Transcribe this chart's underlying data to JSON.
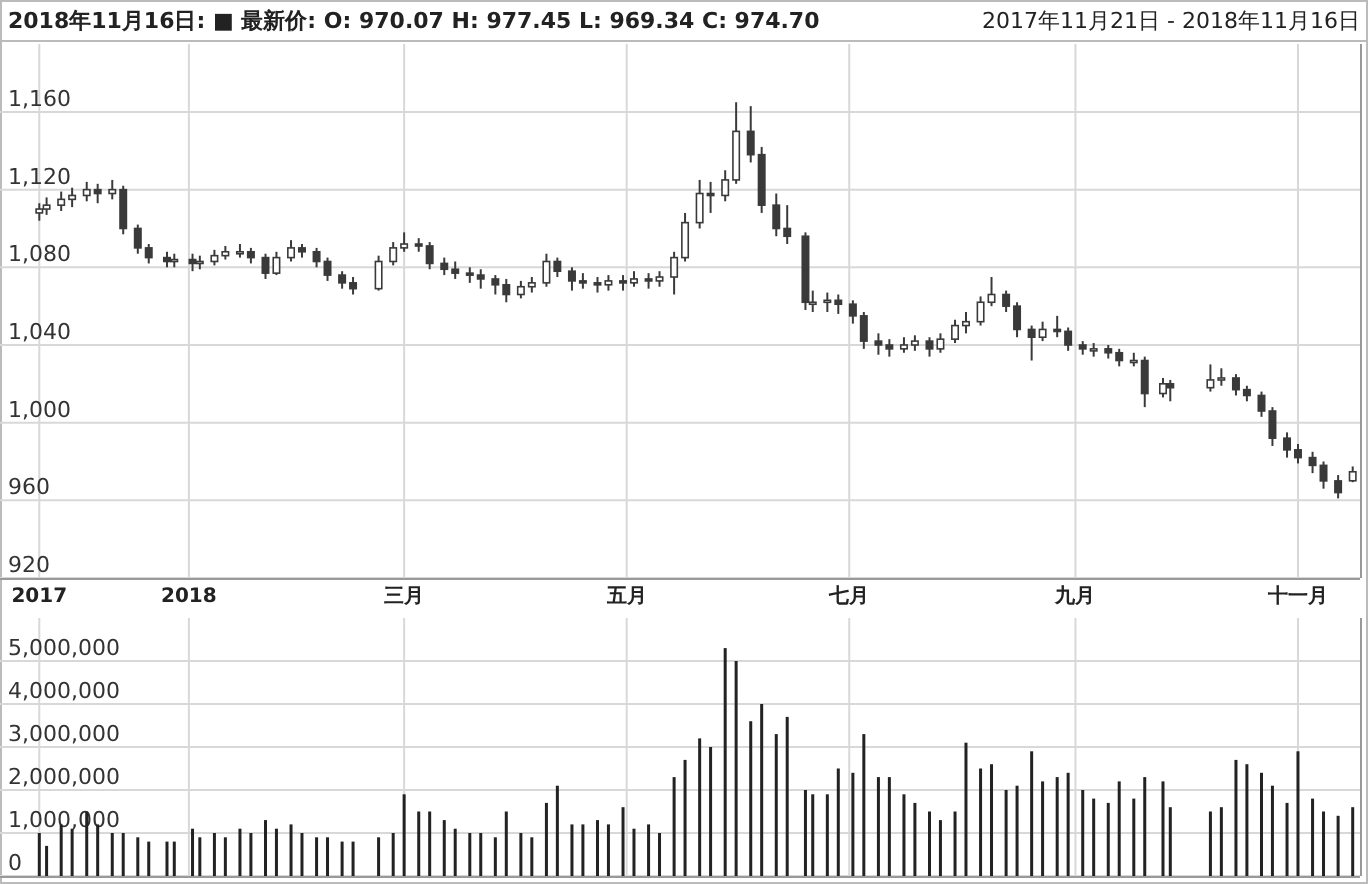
{
  "chart_data": [
    {
      "type": "candlestick",
      "title": "2018年11月16日:  ■ 最新价:  O: 970.07  H: 977.45  L: 969.34  C: 974.70",
      "subtitle": "2017年11月21日 - 2018年11月16日",
      "color": "#3a3a3a",
      "x": [
        "2017-11-21",
        "2017-11-23",
        "2017-11-27",
        "2017-11-30",
        "2017-12-04",
        "2017-12-07",
        "2017-12-11",
        "2017-12-14",
        "2017-12-18",
        "2017-12-21",
        "2017-12-26",
        "2017-12-28",
        "2018-01-02",
        "2018-01-04",
        "2018-01-08",
        "2018-01-11",
        "2018-01-15",
        "2018-01-18",
        "2018-01-22",
        "2018-01-25",
        "2018-01-29",
        "2018-02-01",
        "2018-02-05",
        "2018-02-08",
        "2018-02-12",
        "2018-02-15",
        "2018-02-22",
        "2018-02-26",
        "2018-03-01",
        "2018-03-05",
        "2018-03-08",
        "2018-03-12",
        "2018-03-15",
        "2018-03-19",
        "2018-03-22",
        "2018-03-26",
        "2018-03-29",
        "2018-04-02",
        "2018-04-05",
        "2018-04-09",
        "2018-04-12",
        "2018-04-16",
        "2018-04-19",
        "2018-04-23",
        "2018-04-26",
        "2018-04-30",
        "2018-05-03",
        "2018-05-07",
        "2018-05-10",
        "2018-05-14",
        "2018-05-17",
        "2018-05-21",
        "2018-05-24",
        "2018-05-28",
        "2018-05-31",
        "2018-06-04",
        "2018-06-07",
        "2018-06-11",
        "2018-06-14",
        "2018-06-19",
        "2018-06-21",
        "2018-06-25",
        "2018-06-28",
        "2018-07-02",
        "2018-07-05",
        "2018-07-09",
        "2018-07-12",
        "2018-07-16",
        "2018-07-19",
        "2018-07-23",
        "2018-07-26",
        "2018-07-30",
        "2018-08-02",
        "2018-08-06",
        "2018-08-09",
        "2018-08-13",
        "2018-08-16",
        "2018-08-20",
        "2018-08-23",
        "2018-08-27",
        "2018-08-30",
        "2018-09-03",
        "2018-09-06",
        "2018-09-10",
        "2018-09-13",
        "2018-09-17",
        "2018-09-20",
        "2018-09-25",
        "2018-09-27",
        "2018-10-08",
        "2018-10-11",
        "2018-10-15",
        "2018-10-18",
        "2018-10-22",
        "2018-10-25",
        "2018-10-29",
        "2018-11-01",
        "2018-11-05",
        "2018-11-08",
        "2018-11-12",
        "2018-11-16"
      ],
      "ohlc": [
        [
          1108,
          1113,
          1104,
          1110
        ],
        [
          1110,
          1116,
          1107,
          1112
        ],
        [
          1112,
          1119,
          1109,
          1115
        ],
        [
          1115,
          1121,
          1111,
          1117
        ],
        [
          1117,
          1124,
          1114,
          1120
        ],
        [
          1120,
          1123,
          1113,
          1118
        ],
        [
          1118,
          1125,
          1115,
          1120
        ],
        [
          1120,
          1122,
          1097,
          1100
        ],
        [
          1100,
          1102,
          1087,
          1090
        ],
        [
          1090,
          1092,
          1082,
          1085
        ],
        [
          1085,
          1088,
          1080,
          1083
        ],
        [
          1083,
          1087,
          1080,
          1084
        ],
        [
          1084,
          1087,
          1078,
          1082
        ],
        [
          1082,
          1086,
          1079,
          1083
        ],
        [
          1083,
          1089,
          1081,
          1086
        ],
        [
          1086,
          1091,
          1084,
          1088
        ],
        [
          1088,
          1092,
          1085,
          1088
        ],
        [
          1088,
          1090,
          1082,
          1085
        ],
        [
          1085,
          1087,
          1074,
          1077
        ],
        [
          1077,
          1088,
          1076,
          1085
        ],
        [
          1085,
          1094,
          1083,
          1090
        ],
        [
          1090,
          1092,
          1085,
          1088
        ],
        [
          1088,
          1090,
          1080,
          1083
        ],
        [
          1083,
          1085,
          1073,
          1076
        ],
        [
          1076,
          1078,
          1069,
          1072
        ],
        [
          1072,
          1075,
          1066,
          1069
        ],
        [
          1069,
          1086,
          1068,
          1083
        ],
        [
          1083,
          1093,
          1081,
          1090
        ],
        [
          1090,
          1098,
          1088,
          1092
        ],
        [
          1092,
          1095,
          1088,
          1091
        ],
        [
          1091,
          1093,
          1079,
          1082
        ],
        [
          1082,
          1085,
          1076,
          1079
        ],
        [
          1079,
          1083,
          1074,
          1077
        ],
        [
          1077,
          1080,
          1072,
          1076
        ],
        [
          1076,
          1079,
          1069,
          1074
        ],
        [
          1074,
          1076,
          1066,
          1071
        ],
        [
          1071,
          1074,
          1062,
          1066
        ],
        [
          1066,
          1073,
          1064,
          1070
        ],
        [
          1070,
          1075,
          1067,
          1072
        ],
        [
          1072,
          1087,
          1070,
          1083
        ],
        [
          1083,
          1085,
          1075,
          1078
        ],
        [
          1078,
          1080,
          1068,
          1073
        ],
        [
          1073,
          1077,
          1069,
          1072
        ],
        [
          1072,
          1075,
          1067,
          1071
        ],
        [
          1071,
          1076,
          1068,
          1073
        ],
        [
          1073,
          1076,
          1068,
          1072
        ],
        [
          1072,
          1078,
          1070,
          1074
        ],
        [
          1074,
          1077,
          1069,
          1073
        ],
        [
          1073,
          1078,
          1070,
          1075
        ],
        [
          1075,
          1088,
          1066,
          1085
        ],
        [
          1085,
          1108,
          1083,
          1103
        ],
        [
          1103,
          1125,
          1100,
          1118
        ],
        [
          1118,
          1124,
          1108,
          1117
        ],
        [
          1117,
          1130,
          1114,
          1125
        ],
        [
          1125,
          1165,
          1123,
          1150
        ],
        [
          1150,
          1163,
          1134,
          1138
        ],
        [
          1138,
          1142,
          1108,
          1112
        ],
        [
          1112,
          1118,
          1096,
          1100
        ],
        [
          1100,
          1112,
          1092,
          1096
        ],
        [
          1096,
          1098,
          1058,
          1062
        ],
        [
          1062,
          1068,
          1057,
          1062
        ],
        [
          1062,
          1067,
          1057,
          1063
        ],
        [
          1063,
          1066,
          1056,
          1061
        ],
        [
          1061,
          1063,
          1051,
          1055
        ],
        [
          1055,
          1057,
          1038,
          1042
        ],
        [
          1042,
          1046,
          1035,
          1040
        ],
        [
          1040,
          1043,
          1034,
          1038
        ],
        [
          1038,
          1044,
          1036,
          1040
        ],
        [
          1040,
          1045,
          1037,
          1042
        ],
        [
          1042,
          1044,
          1034,
          1038
        ],
        [
          1038,
          1046,
          1036,
          1043
        ],
        [
          1043,
          1053,
          1041,
          1050
        ],
        [
          1050,
          1057,
          1046,
          1052
        ],
        [
          1052,
          1065,
          1050,
          1062
        ],
        [
          1062,
          1075,
          1060,
          1066
        ],
        [
          1066,
          1068,
          1057,
          1060
        ],
        [
          1060,
          1062,
          1044,
          1048
        ],
        [
          1048,
          1050,
          1032,
          1044
        ],
        [
          1044,
          1052,
          1042,
          1048
        ],
        [
          1048,
          1055,
          1044,
          1047
        ],
        [
          1047,
          1049,
          1037,
          1040
        ],
        [
          1040,
          1042,
          1035,
          1038
        ],
        [
          1038,
          1041,
          1034,
          1038
        ],
        [
          1038,
          1040,
          1033,
          1036
        ],
        [
          1036,
          1038,
          1029,
          1032
        ],
        [
          1032,
          1036,
          1029,
          1032
        ],
        [
          1032,
          1034,
          1008,
          1015
        ],
        [
          1015,
          1023,
          1013,
          1020
        ],
        [
          1020,
          1022,
          1011,
          1018
        ],
        [
          1018,
          1030,
          1016,
          1022
        ],
        [
          1022,
          1028,
          1019,
          1023
        ],
        [
          1023,
          1025,
          1014,
          1017
        ],
        [
          1017,
          1019,
          1011,
          1014
        ],
        [
          1014,
          1016,
          1003,
          1006
        ],
        [
          1006,
          1008,
          988,
          992
        ],
        [
          992,
          995,
          982,
          986
        ],
        [
          986,
          989,
          979,
          982
        ],
        [
          982,
          985,
          974,
          978
        ],
        [
          978,
          980,
          966,
          970
        ],
        [
          970,
          973,
          961,
          964
        ],
        [
          970.07,
          977.45,
          969.34,
          974.7
        ]
      ],
      "xlim": [
        "2017-11-19",
        "2018-11-18"
      ],
      "xticks": [
        {
          "value": "2017-11-21",
          "label": "2017"
        },
        {
          "value": "2018-01-01",
          "label": "2018"
        },
        {
          "value": "2018-03-01",
          "label": "三月"
        },
        {
          "value": "2018-05-01",
          "label": "五月"
        },
        {
          "value": "2018-07-01",
          "label": "七月"
        },
        {
          "value": "2018-09-01",
          "label": "九月"
        },
        {
          "value": "2018-11-01",
          "label": "十一月"
        }
      ],
      "ylim": [
        920,
        1195
      ],
      "yticks": [
        920,
        960,
        {
          "value": 1000,
          "label": "1,000"
        },
        {
          "value": 1040,
          "label": "1,040"
        },
        {
          "value": 1080,
          "label": "1,080"
        },
        {
          "value": 1120,
          "label": "1,120"
        },
        {
          "value": 1160,
          "label": "1,160"
        }
      ],
      "grid": true
    },
    {
      "type": "bar",
      "color": "#222222",
      "x": [
        "2017-11-21",
        "2017-11-23",
        "2017-11-27",
        "2017-11-30",
        "2017-12-04",
        "2017-12-07",
        "2017-12-11",
        "2017-12-14",
        "2017-12-18",
        "2017-12-21",
        "2017-12-26",
        "2017-12-28",
        "2018-01-02",
        "2018-01-04",
        "2018-01-08",
        "2018-01-11",
        "2018-01-15",
        "2018-01-18",
        "2018-01-22",
        "2018-01-25",
        "2018-01-29",
        "2018-02-01",
        "2018-02-05",
        "2018-02-08",
        "2018-02-12",
        "2018-02-15",
        "2018-02-22",
        "2018-02-26",
        "2018-03-01",
        "2018-03-05",
        "2018-03-08",
        "2018-03-12",
        "2018-03-15",
        "2018-03-19",
        "2018-03-22",
        "2018-03-26",
        "2018-03-29",
        "2018-04-02",
        "2018-04-05",
        "2018-04-09",
        "2018-04-12",
        "2018-04-16",
        "2018-04-19",
        "2018-04-23",
        "2018-04-26",
        "2018-04-30",
        "2018-05-03",
        "2018-05-07",
        "2018-05-10",
        "2018-05-14",
        "2018-05-17",
        "2018-05-21",
        "2018-05-24",
        "2018-05-28",
        "2018-05-31",
        "2018-06-04",
        "2018-06-07",
        "2018-06-11",
        "2018-06-14",
        "2018-06-19",
        "2018-06-21",
        "2018-06-25",
        "2018-06-28",
        "2018-07-02",
        "2018-07-05",
        "2018-07-09",
        "2018-07-12",
        "2018-07-16",
        "2018-07-19",
        "2018-07-23",
        "2018-07-26",
        "2018-07-30",
        "2018-08-02",
        "2018-08-06",
        "2018-08-09",
        "2018-08-13",
        "2018-08-16",
        "2018-08-20",
        "2018-08-23",
        "2018-08-27",
        "2018-08-30",
        "2018-09-03",
        "2018-09-06",
        "2018-09-10",
        "2018-09-13",
        "2018-09-17",
        "2018-09-20",
        "2018-09-25",
        "2018-09-27",
        "2018-10-08",
        "2018-10-11",
        "2018-10-15",
        "2018-10-18",
        "2018-10-22",
        "2018-10-25",
        "2018-10-29",
        "2018-11-01",
        "2018-11-05",
        "2018-11-08",
        "2018-11-12",
        "2018-11-16"
      ],
      "values": [
        1000000,
        700000,
        1200000,
        1100000,
        1500000,
        1200000,
        1000000,
        1000000,
        900000,
        800000,
        800000,
        800000,
        1100000,
        900000,
        1000000,
        900000,
        1100000,
        1000000,
        1300000,
        1100000,
        1200000,
        1000000,
        900000,
        900000,
        800000,
        800000,
        900000,
        1000000,
        1900000,
        1500000,
        1500000,
        1300000,
        1100000,
        1000000,
        1000000,
        900000,
        1500000,
        1000000,
        900000,
        1700000,
        2100000,
        1200000,
        1200000,
        1300000,
        1200000,
        1600000,
        1100000,
        1200000,
        1000000,
        2300000,
        2700000,
        3200000,
        3000000,
        5300000,
        5000000,
        3600000,
        4000000,
        3300000,
        3700000,
        2000000,
        1900000,
        1900000,
        2500000,
        2400000,
        3300000,
        2300000,
        2300000,
        1900000,
        1700000,
        1500000,
        1300000,
        1500000,
        3100000,
        2500000,
        2600000,
        2000000,
        2100000,
        2900000,
        2200000,
        2300000,
        2400000,
        2000000,
        1800000,
        1700000,
        2200000,
        1800000,
        2300000,
        2200000,
        1600000,
        1500000,
        1600000,
        2700000,
        2600000,
        2400000,
        2100000,
        1700000,
        2900000,
        1800000,
        1500000,
        1400000,
        1600000
      ],
      "xlim": [
        "2017-11-19",
        "2018-11-18"
      ],
      "xticks": [
        {
          "value": "2017-11-21",
          "label": null
        },
        {
          "value": "2018-01-01",
          "label": null
        },
        {
          "value": "2018-03-01",
          "label": null
        },
        {
          "value": "2018-05-01",
          "label": null
        },
        {
          "value": "2018-07-01",
          "label": null
        },
        {
          "value": "2018-09-01",
          "label": null
        },
        {
          "value": "2018-11-01",
          "label": null
        }
      ],
      "ylim": [
        0,
        6000000
      ],
      "yticks": [
        0,
        {
          "value": 1000000,
          "label": "1,000,000"
        },
        {
          "value": 2000000,
          "label": "2,000,000"
        },
        {
          "value": 3000000,
          "label": "3,000,000"
        },
        {
          "value": 4000000,
          "label": "4,000,000"
        },
        {
          "value": 5000000,
          "label": "5,000,000"
        }
      ],
      "grid": true,
      "tick_labels": "y"
    }
  ]
}
